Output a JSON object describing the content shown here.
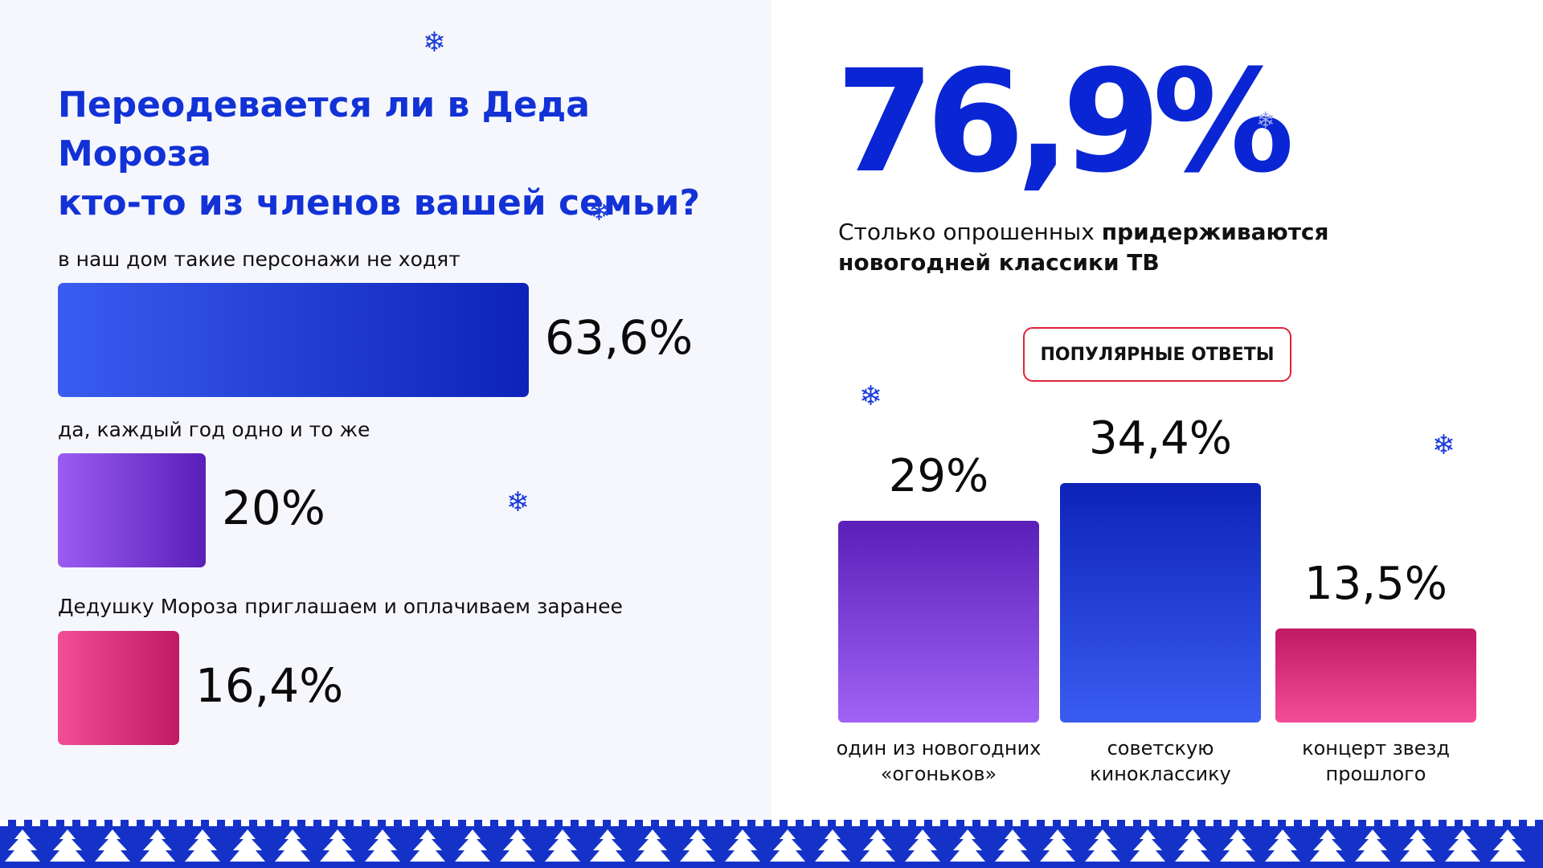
{
  "question": {
    "line1": "Переодевается ли в Деда Мороза",
    "line2": "кто-то из членов вашей семьи?"
  },
  "stat": {
    "value": "76,9%",
    "caption_plain": "Столько опрошенных ",
    "caption_bold_1": "придерживаются",
    "caption_bold_2": "новогодней классики ТВ"
  },
  "pill_label": "ПОПУЛЯРНЫЕ ОТВЕТЫ",
  "colors": {
    "title_blue": "#1232d6",
    "big_blue": "#0a26d4",
    "pill_border": "#e0233a",
    "blue_gradient": [
      "#3a5cf0",
      "#0d23b8"
    ],
    "purple_gradient": [
      "#9b5cf2",
      "#5a1fb8"
    ],
    "pink_gradient": [
      "#f24d96",
      "#c01a64"
    ]
  },
  "chart_data": [
    {
      "type": "bar",
      "orientation": "horizontal",
      "categories": [
        "в наш дом такие персонажи не ходят",
        "да, каждый год одно и то же",
        "Дедушку Мороза приглашаем и оплачиваем заранее"
      ],
      "values": [
        63.6,
        20,
        16.4
      ],
      "value_labels": [
        "63,6%",
        "20%",
        "16,4%"
      ],
      "title": "Переодевается ли в Деда Мороза кто-то из членов вашей семьи?"
    },
    {
      "type": "bar",
      "orientation": "vertical",
      "categories": [
        "один из новогодних «огоньков»",
        "советскую киноклассику",
        "концерт звезд прошлого"
      ],
      "category_lines": [
        [
          "один из новогодних",
          "«огоньков»"
        ],
        [
          "советскую",
          "киноклассику"
        ],
        [
          "концерт звезд",
          "прошлого"
        ]
      ],
      "values": [
        29,
        34.4,
        13.5
      ],
      "value_labels": [
        "29%",
        "34,4%",
        "13,5%"
      ],
      "title": "ПОПУЛЯРНЫЕ ОТВЕТЫ"
    }
  ]
}
